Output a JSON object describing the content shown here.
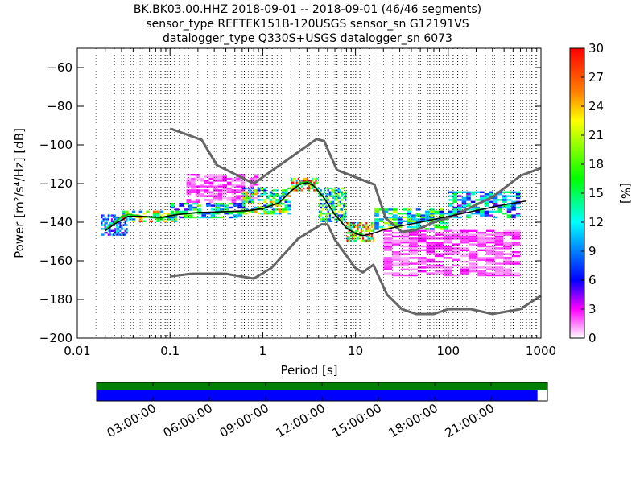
{
  "chart_data": {
    "type": "heatmap",
    "title_lines": [
      "BK.BK03.00.HHZ   2018-09-01 -- 2018-09-01  (46/46 segments)",
      "sensor_type REFTEK151B-120USGS sensor_sn G12191VS",
      "datalogger_type Q330S+USGS datalogger_sn 6073"
    ],
    "xlabel": "Period [s]",
    "ylabel": "Power [m²/s⁴/Hz] [dB]",
    "x_scale": "log",
    "xlim": [
      0.01,
      1000
    ],
    "ylim": [
      -200,
      -50
    ],
    "x_ticks": [
      0.01,
      0.1,
      1,
      10,
      100,
      1000
    ],
    "x_tick_labels": [
      "0.01",
      "0.1",
      "1",
      "10",
      "100",
      "1000"
    ],
    "y_ticks": [
      -200,
      -180,
      -160,
      -140,
      -120,
      -100,
      -80,
      -60
    ],
    "y_tick_labels": [
      "−200",
      "−180",
      "−160",
      "−140",
      "−120",
      "−100",
      "−80",
      "−60"
    ],
    "grid": "dotted vertical at period bins",
    "colorbar": {
      "label": "[%]",
      "range": [
        0,
        30
      ],
      "ticks": [
        0,
        3,
        6,
        9,
        12,
        15,
        18,
        21,
        24,
        27,
        30
      ],
      "tick_labels": [
        "0",
        "3",
        "6",
        "9",
        "12",
        "15",
        "18",
        "21",
        "24",
        "27",
        "30"
      ],
      "colormap": "pqlx"
    },
    "noise_models": {
      "color": "#666666",
      "high": [
        [
          0.1,
          -91.5
        ],
        [
          0.22,
          -97.4
        ],
        [
          0.32,
          -110.5
        ],
        [
          0.8,
          -120
        ],
        [
          3.8,
          -97
        ],
        [
          4.6,
          -98
        ],
        [
          6.3,
          -113
        ],
        [
          16,
          -120.5
        ],
        [
          21.2,
          -138
        ],
        [
          31.6,
          -145
        ],
        [
          45,
          -144
        ],
        [
          70,
          -140
        ],
        [
          110,
          -137
        ],
        [
          300,
          -127
        ],
        [
          600,
          -116
        ],
        [
          1000,
          -112
        ]
      ],
      "low": [
        [
          0.1,
          -168
        ],
        [
          0.17,
          -166.7
        ],
        [
          0.4,
          -166.7
        ],
        [
          0.8,
          -169.2
        ],
        [
          1.24,
          -163.7
        ],
        [
          2.4,
          -148.6
        ],
        [
          4.3,
          -141.1
        ],
        [
          5.0,
          -141.1
        ],
        [
          6.0,
          -149
        ],
        [
          10,
          -163.8
        ],
        [
          12,
          -166
        ],
        [
          15.6,
          -162.1
        ],
        [
          21.9,
          -177.5
        ],
        [
          31.6,
          -185
        ],
        [
          45,
          -187.5
        ],
        [
          70,
          -187.5
        ],
        [
          100,
          -185
        ],
        [
          175,
          -185
        ],
        [
          300,
          -187.5
        ],
        [
          600,
          -185
        ],
        [
          1000,
          -178
        ]
      ]
    },
    "mean_curve": {
      "color": "#000000",
      "points": [
        [
          0.02,
          -144.5
        ],
        [
          0.025,
          -141
        ],
        [
          0.03,
          -139
        ],
        [
          0.035,
          -137
        ],
        [
          0.05,
          -137
        ],
        [
          0.08,
          -137.5
        ],
        [
          0.12,
          -136
        ],
        [
          0.2,
          -135
        ],
        [
          0.4,
          -134.5
        ],
        [
          0.7,
          -134
        ],
        [
          1,
          -133
        ],
        [
          1.5,
          -130
        ],
        [
          2,
          -124
        ],
        [
          2.5,
          -120.5
        ],
        [
          3,
          -119.5
        ],
        [
          3.5,
          -121
        ],
        [
          4.5,
          -127
        ],
        [
          6,
          -136
        ],
        [
          8,
          -143
        ],
        [
          10,
          -146
        ],
        [
          12,
          -147
        ],
        [
          15,
          -146
        ],
        [
          20,
          -144
        ],
        [
          30,
          -142
        ],
        [
          50,
          -140
        ],
        [
          100,
          -137
        ],
        [
          200,
          -134
        ],
        [
          400,
          -131
        ],
        [
          700,
          -129
        ]
      ]
    },
    "mode_curve": {
      "color": "#00cc00",
      "points": [
        [
          0.02,
          -144
        ],
        [
          0.025,
          -140.5
        ],
        [
          0.03,
          -137
        ],
        [
          0.035,
          -136
        ],
        [
          0.05,
          -137
        ],
        [
          0.08,
          -138
        ],
        [
          0.12,
          -136
        ],
        [
          0.2,
          -135
        ],
        [
          0.5,
          -135
        ],
        [
          1,
          -133
        ],
        [
          1.5,
          -130
        ],
        [
          2,
          -124
        ],
        [
          2.5,
          -120
        ],
        [
          3,
          -119
        ],
        [
          3.5,
          -120.5
        ],
        [
          4.5,
          -127
        ],
        [
          6,
          -136
        ],
        [
          8,
          -143
        ],
        [
          10,
          -145.5
        ],
        [
          12,
          -146.5
        ]
      ]
    },
    "density_bands": [
      {
        "from": 0.018,
        "to": 0.035,
        "dbs": [
          -147,
          -136
        ],
        "density": 9
      },
      {
        "from": 0.03,
        "to": 0.12,
        "dbs": [
          -140,
          -134
        ],
        "density": 18
      },
      {
        "from": 0.1,
        "to": 0.6,
        "dbs": [
          -138,
          -130
        ],
        "density": 12
      },
      {
        "from": 0.15,
        "to": 0.9,
        "dbs": [
          -130,
          -115
        ],
        "density": 2
      },
      {
        "from": 0.6,
        "to": 2,
        "dbs": [
          -136,
          -122
        ],
        "density": 16
      },
      {
        "from": 2,
        "to": 4,
        "dbs": [
          -124,
          -117
        ],
        "density": 22
      },
      {
        "from": 4,
        "to": 8,
        "dbs": [
          -140,
          -122
        ],
        "density": 14
      },
      {
        "from": 8,
        "to": 16,
        "dbs": [
          -150,
          -140
        ],
        "density": 20
      },
      {
        "from": 16,
        "to": 100,
        "dbs": [
          -144,
          -133
        ],
        "density": 14
      },
      {
        "from": 100,
        "to": 600,
        "dbs": [
          -138,
          -124
        ],
        "density": 10
      },
      {
        "from": 20,
        "to": 600,
        "dbs": [
          -168,
          -144
        ],
        "density": 2
      }
    ],
    "time_coverage": {
      "ticks": [
        "03:00:00",
        "06:00:00",
        "09:00:00",
        "12:00:00",
        "15:00:00",
        "18:00:00",
        "21:00:00"
      ],
      "data_color": "#008000",
      "psd_color": "#0000ff",
      "psd_coverage_fraction": 0.978
    }
  }
}
